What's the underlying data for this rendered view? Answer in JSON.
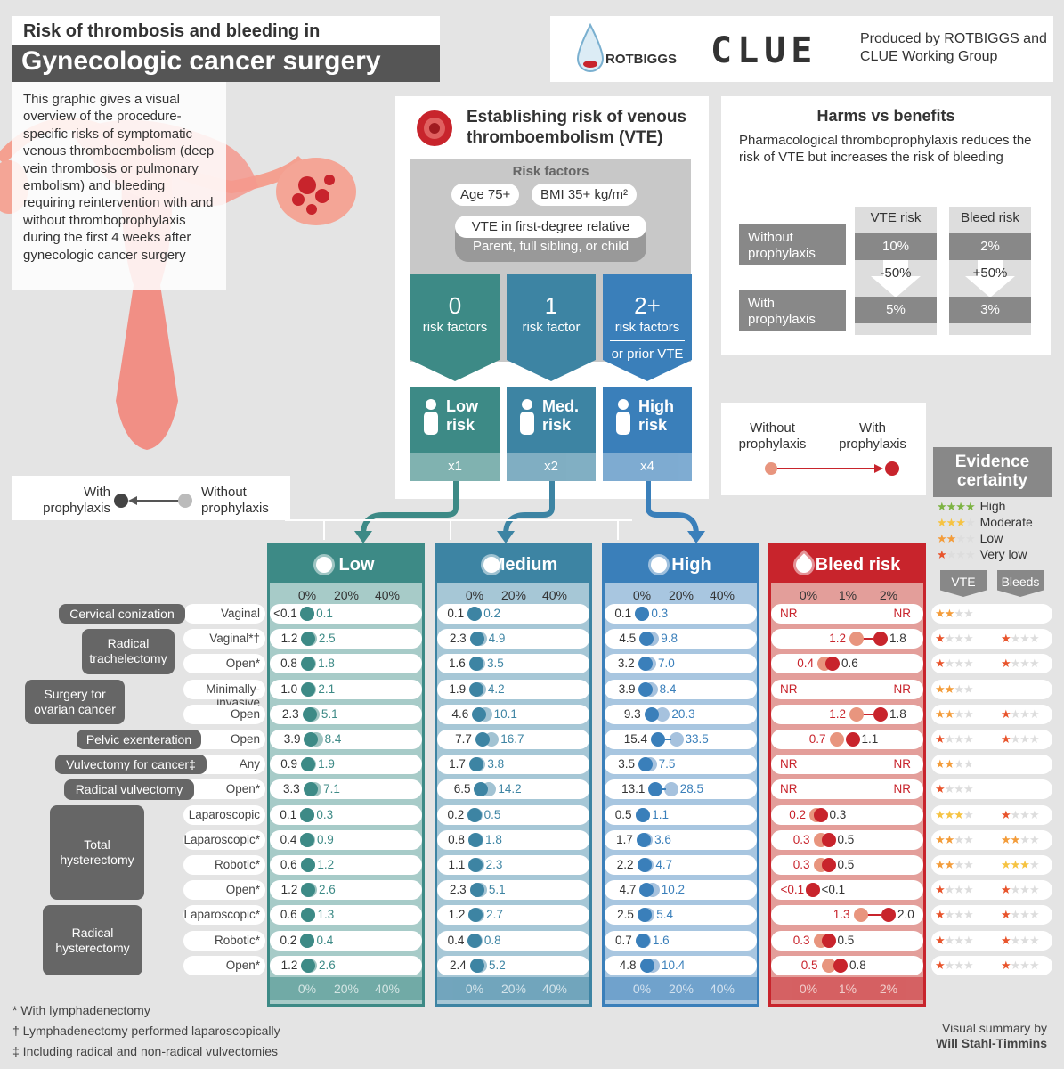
{
  "title": {
    "line1": "Risk of thrombosis and bleeding in",
    "line2": "Gynecologic cancer surgery"
  },
  "intro": "This graphic gives a visual overview of the procedure-specific risks of symptomatic venous thromboembolism (deep vein thrombosis or pulmonary embolism) and bleeding requiring reintervention with and without thromboprophylaxis during the first 4 weeks after gynecologic cancer surgery",
  "logos": {
    "rotbiggs": "ROTBIGGS",
    "clue": "CLUE",
    "produced": "Produced by ROTBIGGS and CLUE Working Group"
  },
  "vte": {
    "title": "Establishing risk of venous thromboembolism (VTE)",
    "risk_factors": "Risk factors",
    "age": "Age 75+",
    "bmi": "BMI 35+ kg/m²",
    "relative": "VTE in first-degree relative",
    "relative_sub": "Parent, full sibling, or child",
    "groups": [
      {
        "n": "0",
        "t": "risk factors",
        "extra": "",
        "risk": "Low risk",
        "mult": "x1",
        "color": "#3d8a86"
      },
      {
        "n": "1",
        "t": "risk factor",
        "extra": "",
        "risk": "Med. risk",
        "mult": "x2",
        "color": "#3d84a3"
      },
      {
        "n": "2+",
        "t": "risk factors",
        "extra": "or prior VTE",
        "risk": "High risk",
        "mult": "x4",
        "color": "#3a7fba"
      }
    ]
  },
  "harms": {
    "title": "Harms vs benefits",
    "desc": "Pharmacological thromboprophylaxis reduces the risk of VTE but increases the risk of bleeding",
    "without": "Without prophylaxis",
    "with": "With prophylaxis",
    "vte_h": "VTE risk",
    "bleed_h": "Bleed risk",
    "vte_without": "10%",
    "vte_change": "-50%",
    "vte_with": "5%",
    "bleed_without": "2%",
    "bleed_change": "+50%",
    "bleed_with": "3%"
  },
  "legend1": {
    "with": "With prophylaxis",
    "without": "Without prophylaxis"
  },
  "legend2": {
    "without": "Without prophylaxis",
    "with": "With prophylaxis"
  },
  "evidence": {
    "title": "Evidence certainty",
    "levels": [
      "High",
      "Moderate",
      "Low",
      "Very low"
    ],
    "vte": "VTE",
    "bleeds": "Bleeds"
  },
  "columns": {
    "low": "Low",
    "medium": "Medium",
    "high": "High",
    "bleed": "Bleed risk",
    "axis_vte": [
      "0%",
      "20%",
      "40%"
    ],
    "axis_bleed": [
      "0%",
      "1%",
      "2%"
    ]
  },
  "procedures": [
    {
      "group": "Cervical conization",
      "sub": "Vaginal",
      "low": [
        "<0.1",
        "0.1"
      ],
      "med": [
        "0.1",
        "0.2"
      ],
      "high": [
        "0.1",
        "0.3"
      ],
      "bleed": [
        "NR",
        "NR"
      ],
      "ev": [
        2,
        0
      ]
    },
    {
      "group": "Radical trachelectomy",
      "sub": "Vaginal*†",
      "low": [
        "1.2",
        "2.5"
      ],
      "med": [
        "2.3",
        "4.9"
      ],
      "high": [
        "4.5",
        "9.8"
      ],
      "bleed": [
        "1.2",
        "1.8"
      ],
      "ev": [
        1,
        1
      ]
    },
    {
      "group": "",
      "sub": "Open*",
      "low": [
        "0.8",
        "1.8"
      ],
      "med": [
        "1.6",
        "3.5"
      ],
      "high": [
        "3.2",
        "7.0"
      ],
      "bleed": [
        "0.4",
        "0.6"
      ],
      "ev": [
        1,
        1
      ]
    },
    {
      "group": "Surgery for ovarian cancer",
      "sub": "Minimally-invasive",
      "low": [
        "1.0",
        "2.1"
      ],
      "med": [
        "1.9",
        "4.2"
      ],
      "high": [
        "3.9",
        "8.4"
      ],
      "bleed": [
        "NR",
        "NR"
      ],
      "ev": [
        2,
        0
      ]
    },
    {
      "group": "",
      "sub": "Open",
      "low": [
        "2.3",
        "5.1"
      ],
      "med": [
        "4.6",
        "10.1"
      ],
      "high": [
        "9.3",
        "20.3"
      ],
      "bleed": [
        "1.2",
        "1.8"
      ],
      "ev": [
        2,
        1
      ]
    },
    {
      "group": "Pelvic exenteration",
      "sub": "Open",
      "low": [
        "3.9",
        "8.4"
      ],
      "med": [
        "7.7",
        "16.7"
      ],
      "high": [
        "15.4",
        "33.5"
      ],
      "bleed": [
        "0.7",
        "1.1"
      ],
      "ev": [
        1,
        1
      ]
    },
    {
      "group": "Vulvectomy for cancer‡",
      "sub": "Any",
      "low": [
        "0.9",
        "1.9"
      ],
      "med": [
        "1.7",
        "3.8"
      ],
      "high": [
        "3.5",
        "7.5"
      ],
      "bleed": [
        "NR",
        "NR"
      ],
      "ev": [
        2,
        0
      ]
    },
    {
      "group": "Radical vulvectomy",
      "sub": "Open*",
      "low": [
        "3.3",
        "7.1"
      ],
      "med": [
        "6.5",
        "14.2"
      ],
      "high": [
        "13.1",
        "28.5"
      ],
      "bleed": [
        "NR",
        "NR"
      ],
      "ev": [
        1,
        0
      ]
    },
    {
      "group": "Total hysterectomy",
      "sub": "Laparoscopic",
      "low": [
        "0.1",
        "0.3"
      ],
      "med": [
        "0.2",
        "0.5"
      ],
      "high": [
        "0.5",
        "1.1"
      ],
      "bleed": [
        "0.2",
        "0.3"
      ],
      "ev": [
        3,
        1
      ]
    },
    {
      "group": "",
      "sub": "Laparoscopic*",
      "low": [
        "0.4",
        "0.9"
      ],
      "med": [
        "0.8",
        "1.8"
      ],
      "high": [
        "1.7",
        "3.6"
      ],
      "bleed": [
        "0.3",
        "0.5"
      ],
      "ev": [
        2,
        2
      ]
    },
    {
      "group": "",
      "sub": "Robotic*",
      "low": [
        "0.6",
        "1.2"
      ],
      "med": [
        "1.1",
        "2.3"
      ],
      "high": [
        "2.2",
        "4.7"
      ],
      "bleed": [
        "0.3",
        "0.5"
      ],
      "ev": [
        2,
        3
      ]
    },
    {
      "group": "",
      "sub": "Open*",
      "low": [
        "1.2",
        "2.6"
      ],
      "med": [
        "2.3",
        "5.1"
      ],
      "high": [
        "4.7",
        "10.2"
      ],
      "bleed": [
        "<0.1",
        "<0.1"
      ],
      "ev": [
        1,
        1
      ]
    },
    {
      "group": "Radical hysterectomy",
      "sub": "Laparoscopic*",
      "low": [
        "0.6",
        "1.3"
      ],
      "med": [
        "1.2",
        "2.7"
      ],
      "high": [
        "2.5",
        "5.4"
      ],
      "bleed": [
        "1.3",
        "2.0"
      ],
      "ev": [
        1,
        1
      ]
    },
    {
      "group": "",
      "sub": "Robotic*",
      "low": [
        "0.2",
        "0.4"
      ],
      "med": [
        "0.4",
        "0.8"
      ],
      "high": [
        "0.7",
        "1.6"
      ],
      "bleed": [
        "0.3",
        "0.5"
      ],
      "ev": [
        1,
        1
      ]
    },
    {
      "group": "",
      "sub": "Open*",
      "low": [
        "1.2",
        "2.6"
      ],
      "med": [
        "2.4",
        "5.2"
      ],
      "high": [
        "4.8",
        "10.4"
      ],
      "bleed": [
        "0.5",
        "0.8"
      ],
      "ev": [
        1,
        1
      ]
    }
  ],
  "footnotes": [
    "* With lymphadenectomy",
    "† Lymphadenectomy performed laparoscopically",
    "‡ Including radical and non-radical vulvectomies"
  ],
  "credit": {
    "line1": "Visual summary by",
    "line2": "Will Stahl-Timmins"
  }
}
